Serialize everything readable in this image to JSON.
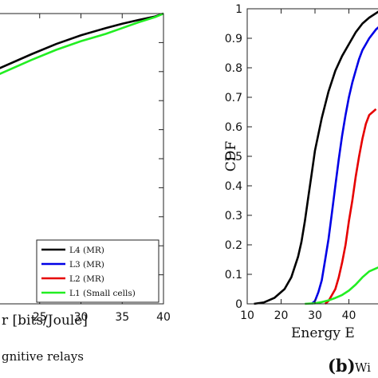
{
  "chart_data": [
    {
      "type": "line",
      "xlabel": "r [bits/Joule]",
      "ylabel": "",
      "xlim": [
        20,
        40
      ],
      "ylim": [
        0,
        1
      ],
      "x_ticks": [
        "25",
        "30",
        "35",
        "40"
      ],
      "series": [
        {
          "name": "L4 (MR)",
          "color": "#000000",
          "x": [
            20,
            24,
            27,
            30,
            33,
            35,
            37,
            39,
            40
          ],
          "y": [
            0.81,
            0.86,
            0.895,
            0.925,
            0.95,
            0.965,
            0.978,
            0.99,
            1.0
          ]
        },
        {
          "name": "L3 (MR)",
          "color": "#0000e6",
          "x": [],
          "y": []
        },
        {
          "name": "L2 (MR)",
          "color": "#e60000",
          "x": [],
          "y": []
        },
        {
          "name": "L1 (Small cells)",
          "color": "#22ee22",
          "x": [
            20,
            24,
            27,
            30,
            33,
            35,
            37,
            39,
            40
          ],
          "y": [
            0.79,
            0.84,
            0.875,
            0.905,
            0.93,
            0.95,
            0.97,
            0.988,
            1.0
          ]
        }
      ],
      "caption": "gnitive relays",
      "legend_position": "bottom-right"
    },
    {
      "type": "line",
      "xlabel": "Energy E",
      "ylabel": "CDF",
      "xlim": [
        10,
        50
      ],
      "ylim": [
        0,
        1
      ],
      "x_ticks": [
        "10",
        "20",
        "30",
        "40"
      ],
      "y_ticks": [
        "0",
        "0.1",
        "0.2",
        "0.3",
        "0.4",
        "0.5",
        "0.6",
        "0.7",
        "0.8",
        "0.9",
        "1"
      ],
      "series": [
        {
          "name": "L4 (MR)",
          "color": "#000000",
          "x": [
            12,
            15,
            18,
            21,
            23,
            25,
            26,
            27,
            28,
            29,
            30,
            32,
            34,
            36,
            38,
            40,
            42,
            44,
            46,
            50
          ],
          "y": [
            0,
            0.005,
            0.02,
            0.05,
            0.09,
            0.16,
            0.21,
            0.28,
            0.36,
            0.44,
            0.52,
            0.63,
            0.72,
            0.79,
            0.84,
            0.88,
            0.92,
            0.95,
            0.97,
            1.0
          ]
        },
        {
          "name": "L3 (MR)",
          "color": "#0000e6",
          "x": [
            29,
            30,
            31,
            32,
            33,
            34,
            35,
            36,
            37,
            38,
            39,
            40,
            41,
            42,
            43,
            44,
            45,
            46,
            48,
            50
          ],
          "y": [
            0,
            0.01,
            0.04,
            0.08,
            0.15,
            0.22,
            0.31,
            0.4,
            0.49,
            0.57,
            0.64,
            0.7,
            0.75,
            0.79,
            0.83,
            0.86,
            0.88,
            0.9,
            0.93,
            0.95
          ]
        },
        {
          "name": "L2 (MR)",
          "color": "#e60000",
          "x": [
            33,
            34,
            35,
            36,
            37,
            38,
            39,
            40,
            41,
            42,
            43,
            44,
            45,
            46,
            47,
            48
          ],
          "y": [
            0,
            0.01,
            0.03,
            0.05,
            0.09,
            0.14,
            0.2,
            0.28,
            0.35,
            0.43,
            0.5,
            0.56,
            0.61,
            0.64,
            0.65,
            0.66
          ]
        },
        {
          "name": "L1 (Small cells)",
          "color": "#22ee22",
          "x": [
            27,
            30,
            32,
            34,
            36,
            38,
            40,
            42,
            44,
            46,
            48,
            50
          ],
          "y": [
            0,
            0.002,
            0.006,
            0.012,
            0.02,
            0.03,
            0.045,
            0.065,
            0.09,
            0.11,
            0.12,
            0.13
          ]
        }
      ],
      "caption_bold": "(b)",
      "caption": "Wi"
    }
  ]
}
